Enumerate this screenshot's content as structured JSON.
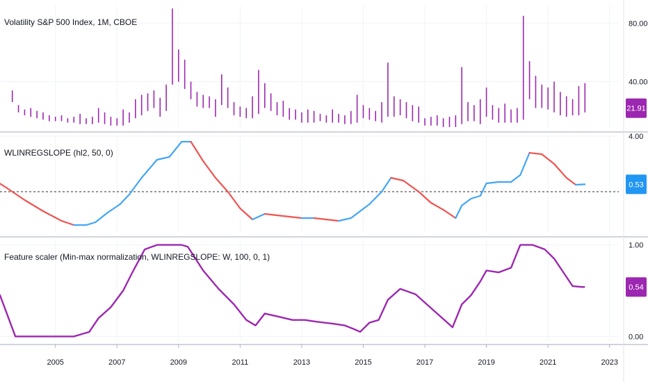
{
  "chart_data": [
    {
      "type": "bar",
      "subtype": "ohlc",
      "title": "Volatility S&P 500 Index, 1M, CBOE",
      "last_value_label": "21.91",
      "yticks": [
        "80.00",
        "40.00"
      ],
      "ytick_values": [
        80,
        40
      ],
      "ylim": [
        8,
        92
      ],
      "color": "#9c27b0",
      "x": [
        2003.6,
        2003.8,
        2004.0,
        2004.2,
        2004.4,
        2004.6,
        2004.8,
        2005.0,
        2005.2,
        2005.4,
        2005.6,
        2005.8,
        2006.0,
        2006.2,
        2006.4,
        2006.6,
        2006.8,
        2007.0,
        2007.2,
        2007.4,
        2007.6,
        2007.8,
        2008.0,
        2008.2,
        2008.4,
        2008.6,
        2008.8,
        2009.0,
        2009.2,
        2009.4,
        2009.6,
        2009.8,
        2010.0,
        2010.2,
        2010.4,
        2010.6,
        2010.8,
        2011.0,
        2011.2,
        2011.4,
        2011.6,
        2011.8,
        2012.0,
        2012.2,
        2012.4,
        2012.6,
        2012.8,
        2013.0,
        2013.2,
        2013.4,
        2013.6,
        2013.8,
        2014.0,
        2014.2,
        2014.4,
        2014.6,
        2014.8,
        2015.0,
        2015.2,
        2015.4,
        2015.6,
        2015.8,
        2016.0,
        2016.2,
        2016.4,
        2016.6,
        2016.8,
        2017.0,
        2017.2,
        2017.4,
        2017.6,
        2017.8,
        2018.0,
        2018.2,
        2018.4,
        2018.6,
        2018.8,
        2019.0,
        2019.2,
        2019.4,
        2019.6,
        2019.8,
        2020.0,
        2020.2,
        2020.4,
        2020.6,
        2020.8,
        2021.0,
        2021.2,
        2021.4,
        2021.6,
        2021.8,
        2022.0,
        2022.2
      ],
      "high": [
        34,
        24,
        21,
        22,
        20,
        19,
        17,
        16,
        17,
        15,
        16,
        18,
        15,
        16,
        22,
        19,
        16,
        15,
        21,
        19,
        28,
        31,
        32,
        34,
        29,
        38,
        90,
        62,
        55,
        40,
        33,
        31,
        30,
        28,
        45,
        36,
        26,
        23,
        22,
        30,
        48,
        39,
        32,
        26,
        27,
        22,
        21,
        19,
        21,
        20,
        18,
        17,
        21,
        18,
        17,
        20,
        31,
        24,
        22,
        20,
        26,
        53,
        30,
        28,
        26,
        24,
        23,
        15,
        16,
        17,
        15,
        16,
        17,
        50,
        26,
        24,
        28,
        36,
        24,
        22,
        25,
        21,
        22,
        85,
        54,
        44,
        38,
        36,
        40,
        33,
        30,
        28,
        37,
        39
      ],
      "low": [
        26,
        19,
        17,
        16,
        15,
        14,
        13,
        13,
        13,
        12,
        12,
        11,
        11,
        11,
        12,
        11,
        10,
        10,
        10,
        12,
        15,
        17,
        20,
        22,
        16,
        20,
        38,
        40,
        35,
        28,
        23,
        22,
        22,
        16,
        24,
        22,
        17,
        16,
        15,
        15,
        18,
        22,
        20,
        17,
        16,
        14,
        14,
        12,
        12,
        12,
        13,
        12,
        12,
        12,
        11,
        11,
        12,
        15,
        14,
        13,
        12,
        16,
        16,
        17,
        15,
        13,
        12,
        10,
        10,
        10,
        9,
        9,
        9,
        11,
        13,
        13,
        11,
        16,
        14,
        12,
        12,
        12,
        12,
        14,
        28,
        22,
        22,
        21,
        19,
        17,
        16,
        17,
        17,
        19
      ]
    },
    {
      "type": "line",
      "title": "WLINREGSLOPE (hl2, 50, 0)",
      "last_value_label": "0.53",
      "yticks": [
        "4.00"
      ],
      "ytick_values": [
        4
      ],
      "ylim": [
        -3,
        4
      ],
      "zero_line": 0,
      "rising_color": "#42a5f5",
      "falling_color": "#ef5350",
      "x": [
        2002.9,
        2003.4,
        2004.0,
        2004.6,
        2005.2,
        2005.6,
        2006.0,
        2006.3,
        2006.7,
        2007.1,
        2007.4,
        2007.8,
        2008.3,
        2008.7,
        2009.1,
        2009.4,
        2009.8,
        2010.2,
        2010.6,
        2011.0,
        2011.4,
        2011.8,
        2012.2,
        2012.6,
        2013.0,
        2013.4,
        2013.8,
        2014.2,
        2014.6,
        2014.9,
        2015.2,
        2015.6,
        2015.9,
        2016.3,
        2016.8,
        2017.2,
        2017.6,
        2018.0,
        2018.2,
        2018.5,
        2018.8,
        2019.0,
        2019.4,
        2019.8,
        2020.1,
        2020.4,
        2020.8,
        2021.2,
        2021.6,
        2021.9,
        2022.2
      ],
      "y": [
        1.0,
        0.3,
        -0.6,
        -1.4,
        -2.1,
        -2.4,
        -2.4,
        -2.2,
        -1.5,
        -0.9,
        -0.2,
        1.0,
        2.3,
        2.5,
        3.6,
        3.6,
        2.2,
        1.0,
        0.0,
        -1.2,
        -2.0,
        -1.6,
        -1.7,
        -1.8,
        -1.9,
        -1.9,
        -2.0,
        -2.1,
        -1.9,
        -1.4,
        -0.9,
        0.0,
        1.0,
        0.8,
        0.0,
        -0.8,
        -1.3,
        -1.9,
        -1.0,
        -0.5,
        -0.3,
        0.6,
        0.7,
        0.7,
        1.2,
        2.8,
        2.7,
        2.0,
        1.0,
        0.5,
        0.53
      ]
    },
    {
      "type": "line",
      "title": "Feature scaler (Min-max normalization, WLINREGSLOPE: W, 100, 0, 1)",
      "last_value_label": "0.54",
      "yticks": [
        "1.00",
        "0.00"
      ],
      "ytick_values": [
        1,
        0
      ],
      "ylim": [
        -0.05,
        1.05
      ],
      "color": "#9c27b0",
      "x": [
        2002.9,
        2003.2,
        2003.7,
        2004.4,
        2005.0,
        2005.6,
        2006.1,
        2006.4,
        2006.8,
        2007.2,
        2007.5,
        2007.9,
        2008.3,
        2008.7,
        2009.1,
        2009.3,
        2009.8,
        2010.3,
        2010.8,
        2011.2,
        2011.5,
        2011.8,
        2012.2,
        2012.7,
        2013.1,
        2013.5,
        2014.0,
        2014.4,
        2014.7,
        2014.9,
        2015.2,
        2015.5,
        2015.8,
        2016.2,
        2016.7,
        2017.1,
        2017.5,
        2017.9,
        2018.2,
        2018.5,
        2018.8,
        2019.0,
        2019.4,
        2019.8,
        2020.1,
        2020.5,
        2020.9,
        2021.2,
        2021.5,
        2021.8,
        2022.1,
        2022.2
      ],
      "y": [
        0.55,
        0.45,
        0.0,
        0.0,
        0.0,
        0.0,
        0.05,
        0.2,
        0.32,
        0.5,
        0.7,
        0.95,
        1.0,
        1.0,
        1.0,
        0.98,
        0.72,
        0.52,
        0.35,
        0.18,
        0.12,
        0.25,
        0.22,
        0.18,
        0.18,
        0.16,
        0.14,
        0.12,
        0.08,
        0.05,
        0.15,
        0.18,
        0.4,
        0.52,
        0.46,
        0.34,
        0.22,
        0.1,
        0.35,
        0.45,
        0.6,
        0.72,
        0.7,
        0.75,
        1.0,
        1.0,
        0.95,
        0.85,
        0.7,
        0.55,
        0.54,
        0.54
      ]
    }
  ],
  "x_axis": {
    "ticks": [
      "2005",
      "2007",
      "2009",
      "2011",
      "2013",
      "2015",
      "2017",
      "2019",
      "2021",
      "2023"
    ],
    "tick_values": [
      2005,
      2007,
      2009,
      2011,
      2013,
      2015,
      2017,
      2019,
      2021,
      2023
    ],
    "xlim": [
      2003.2,
      2023.3
    ]
  },
  "colors": {
    "vix_badge": "#9c27b0",
    "slope_badge": "#2196f3",
    "scaler_badge": "#9c27b0",
    "grid": "#f0f3fa",
    "separator": "#d1d4dc"
  }
}
